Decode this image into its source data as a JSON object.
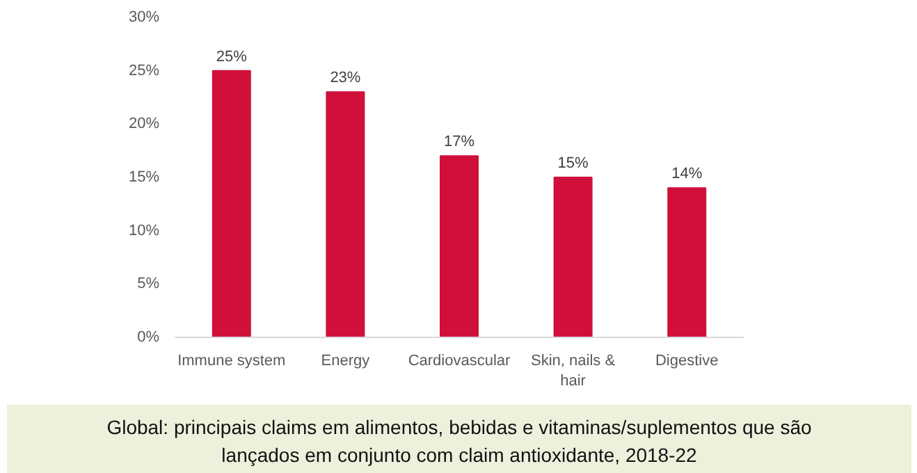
{
  "chart_data": {
    "type": "bar",
    "title": "Global: principais claims em alimentos, bebidas e vitaminas/suplementos que são lançados em conjunto com claim antioxidante, 2018-22",
    "categories": [
      "Immune system",
      "Energy",
      "Cardiovascular",
      "Skin, nails &\nhair",
      "Digestive"
    ],
    "values": [
      25,
      23,
      17,
      15,
      14
    ],
    "value_labels": [
      "25%",
      "23%",
      "17%",
      "15%",
      "14%"
    ],
    "color": "#d0103a",
    "ylim": [
      0,
      30
    ],
    "yticks": [
      {
        "value": 0,
        "label": "0%"
      },
      {
        "value": 5,
        "label": "5%"
      },
      {
        "value": 10,
        "label": "10%"
      },
      {
        "value": 15,
        "label": "15%"
      },
      {
        "value": 20,
        "label": "20%"
      },
      {
        "value": 25,
        "label": "25%"
      },
      {
        "value": 30,
        "label": "30%"
      }
    ],
    "grid": false
  }
}
